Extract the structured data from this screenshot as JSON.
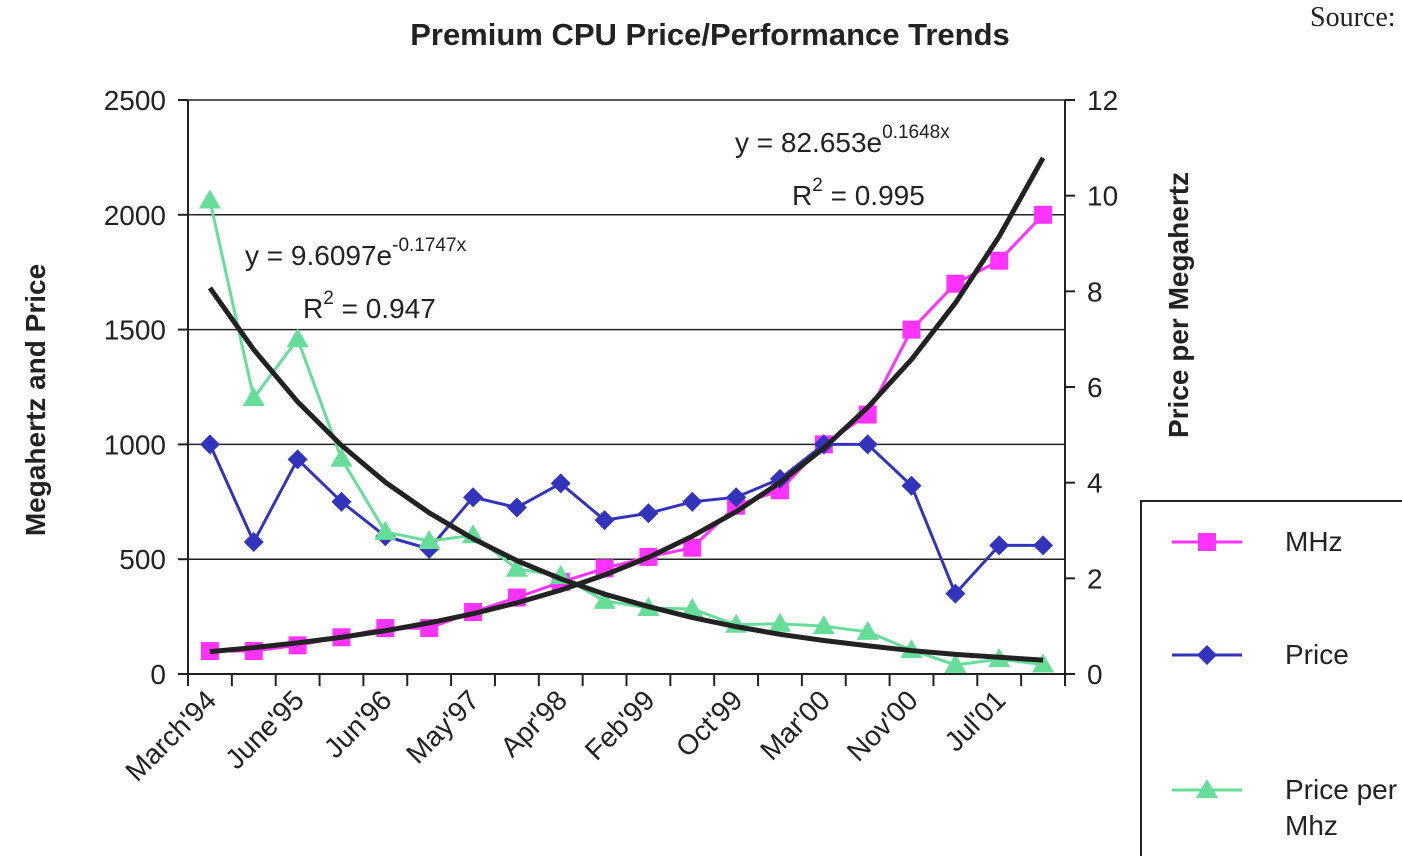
{
  "chart_data": {
    "type": "line",
    "title": "Premium CPU Price/Performance Trends",
    "source": "Source:",
    "ylabel": "Megahertz and Price",
    "y2label": "Price per Megahertz",
    "categories": [
      "March'94",
      null,
      "June'95",
      null,
      "Jun'96",
      null,
      "May'97",
      null,
      "Apr'98",
      null,
      "Feb'99",
      null,
      "Oct'99",
      null,
      "Mar'00",
      null,
      "Nov'00",
      null,
      "Jul'01",
      null
    ],
    "ylim": [
      0,
      2500
    ],
    "yticks": [
      0,
      500,
      1000,
      1500,
      2000,
      2500
    ],
    "y2lim": [
      0,
      12
    ],
    "y2ticks": [
      0,
      2,
      4,
      6,
      8,
      10,
      12
    ],
    "grid": true,
    "legend": "right",
    "series": [
      {
        "name": "MHz",
        "color": "#ff33ff",
        "marker": "square",
        "values": [
          100,
          100,
          125,
          160,
          200,
          200,
          270,
          333,
          400,
          460,
          510,
          550,
          733,
          800,
          1000,
          1130,
          1500,
          1700,
          1800,
          2000
        ]
      },
      {
        "name": "Price",
        "color": "#3333bb",
        "marker": "diamond",
        "values": [
          1000,
          575,
          935,
          750,
          600,
          545,
          770,
          725,
          830,
          670,
          700,
          750,
          770,
          850,
          1000,
          1000,
          820,
          350,
          560,
          560
        ]
      },
      {
        "name": "Price per Mhz",
        "color": "#66dd99",
        "marker": "triangle",
        "axis": "y2",
        "values": [
          9.9,
          5.77,
          7.0,
          4.5,
          2.97,
          2.78,
          2.9,
          2.2,
          2.05,
          1.53,
          1.38,
          1.36,
          1.03,
          1.05,
          1.0,
          0.88,
          0.5,
          0.19,
          0.31,
          0.2
        ]
      }
    ],
    "trendlines": [
      {
        "color": "#222222",
        "values": [
          97.5,
          115,
          135.6,
          160,
          188.7,
          222.6,
          262.6,
          309.7,
          365.4,
          431,
          508,
          600,
          707,
          834,
          984,
          1161,
          1370,
          1616,
          1906,
          2248
        ]
      },
      {
        "color": "#222222",
        "axis": "y2",
        "values": [
          8.07,
          6.78,
          5.69,
          4.78,
          4.01,
          3.37,
          2.83,
          2.37,
          1.99,
          1.67,
          1.41,
          1.18,
          0.99,
          0.83,
          0.7,
          0.59,
          0.49,
          0.41,
          0.35,
          0.29
        ]
      }
    ],
    "annotations": [
      {
        "base": "y = 82.653e",
        "sup": "0.1648x"
      },
      {
        "base": "R",
        "sup": "2",
        "after": " = 0.995"
      },
      {
        "base": "y = 9.6097e",
        "sup": "-0.1747x"
      },
      {
        "base": "R",
        "sup": "2",
        "after": " = 0.947"
      }
    ]
  }
}
